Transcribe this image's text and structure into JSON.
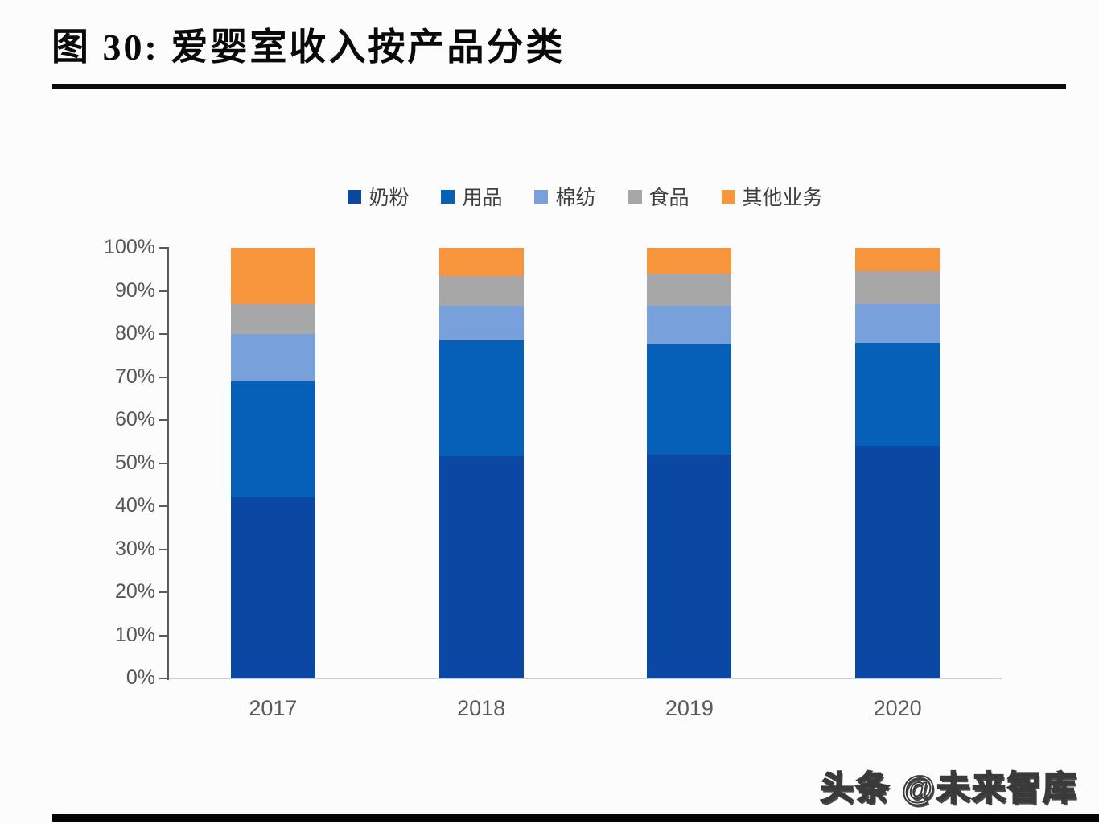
{
  "page": {
    "title": "图 30: 爱婴室收入按产品分类",
    "footer_watermark": "头条 @未来智库"
  },
  "chart_data": {
    "type": "bar",
    "stacked": true,
    "unit": "%",
    "title": "爱婴室收入按产品分类",
    "categories": [
      "2017",
      "2018",
      "2019",
      "2020"
    ],
    "series": [
      {
        "name": "奶粉",
        "color": "#0B48A3",
        "values": [
          42,
          51.5,
          52,
          54
        ]
      },
      {
        "name": "用品",
        "color": "#0760B8",
        "values": [
          27,
          27,
          25.5,
          24
        ]
      },
      {
        "name": "棉纺",
        "color": "#78A1DB",
        "values": [
          11,
          8,
          9,
          9
        ]
      },
      {
        "name": "食品",
        "color": "#A7A7A7",
        "values": [
          7,
          7,
          7.5,
          7.5
        ]
      },
      {
        "name": "其他业务",
        "color": "#F8963E",
        "values": [
          13,
          6.5,
          6,
          5.5
        ]
      }
    ],
    "y_ticks": [
      "100%",
      "90%",
      "80%",
      "70%",
      "60%",
      "50%",
      "40%",
      "30%",
      "20%",
      "10%",
      "0%"
    ],
    "ylim": [
      0,
      100
    ],
    "legend_position": "top",
    "grid": false,
    "axis_color": "#5a5a5a",
    "baseline_color": "#cccccc",
    "tick_label_color": "#565656"
  }
}
